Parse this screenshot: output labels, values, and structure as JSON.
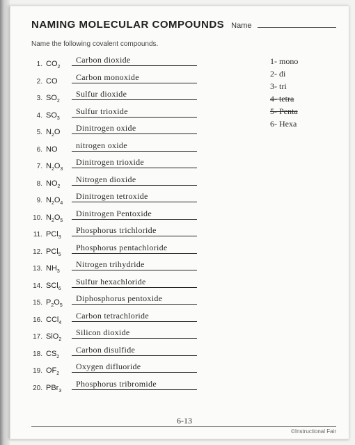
{
  "header": {
    "title": "NAMING MOLECULAR COMPOUNDS",
    "name_label": "Name"
  },
  "instructions": "Name the following covalent compounds.",
  "compounds": [
    {
      "num": "1.",
      "formula": "CO<sub>2</sub>",
      "answer": "Carbon dioxide"
    },
    {
      "num": "2.",
      "formula": "CO",
      "answer": "Carbon monoxide"
    },
    {
      "num": "3.",
      "formula": "SO<sub>2</sub>",
      "answer": "Sulfur dioxide"
    },
    {
      "num": "4.",
      "formula": "SO<sub>3</sub>",
      "answer": "Sulfur trioxide"
    },
    {
      "num": "5.",
      "formula": "N<sub>2</sub>O",
      "answer": "Dinitrogen oxide"
    },
    {
      "num": "6.",
      "formula": "NO",
      "answer": "nitrogen oxide"
    },
    {
      "num": "7.",
      "formula": "N<sub>2</sub>O<sub>3</sub>",
      "answer": "Dinitrogen trioxide"
    },
    {
      "num": "8.",
      "formula": "NO<sub>2</sub>",
      "answer": "Nitrogen dioxide"
    },
    {
      "num": "9.",
      "formula": "N<sub>2</sub>O<sub>4</sub>",
      "answer": "Dinitrogen tetroxide"
    },
    {
      "num": "10.",
      "formula": "N<sub>2</sub>O<sub>5</sub>",
      "answer": "Dinitrogen Pentoxide"
    },
    {
      "num": "11.",
      "formula": "PCl<sub>3</sub>",
      "answer": "Phosphorus trichloride"
    },
    {
      "num": "12.",
      "formula": "PCl<sub>5</sub>",
      "answer": "Phosphorus pentachloride"
    },
    {
      "num": "13.",
      "formula": "NH<sub>3</sub>",
      "answer": "Nitrogen trihydride"
    },
    {
      "num": "14.",
      "formula": "SCl<sub>6</sub>",
      "answer": "Sulfur hexachloride"
    },
    {
      "num": "15.",
      "formula": "P<sub>2</sub>O<sub>5</sub>",
      "answer": "Diphosphorus pentoxide"
    },
    {
      "num": "16.",
      "formula": "CCl<sub>4</sub>",
      "answer": "Carbon tetrachloride"
    },
    {
      "num": "17.",
      "formula": "SiO<sub>2</sub>",
      "answer": "Silicon dioxide"
    },
    {
      "num": "18.",
      "formula": "CS<sub>2</sub>",
      "answer": "Carbon disulfide"
    },
    {
      "num": "19.",
      "formula": "OF<sub>2</sub>",
      "answer": "Oxygen difluoride"
    },
    {
      "num": "20.",
      "formula": "PBr<sub>3</sub>",
      "answer": "Phosphorus tribromide"
    }
  ],
  "prefixes": [
    {
      "text": "1- mono",
      "strike": false
    },
    {
      "text": "2- di",
      "strike": false
    },
    {
      "text": "3- tri",
      "strike": false
    },
    {
      "text": "4- tetra",
      "strike": true
    },
    {
      "text": "5- Penta",
      "strike": true
    },
    {
      "text": "6- Hexa",
      "strike": false
    }
  ],
  "footer": {
    "page_num": "6-13",
    "copyright": "©Instructional Fair"
  }
}
